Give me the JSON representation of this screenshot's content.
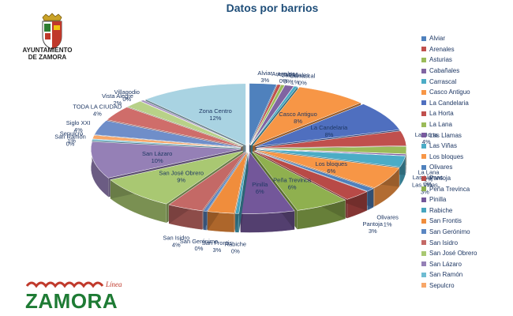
{
  "chart_data": {
    "type": "pie",
    "title": "Datos por barrios",
    "categories": [
      "Alviar",
      "Arenales",
      "Asturias",
      "Cabañales",
      "Carrascal",
      "Casco Antiguo",
      "La Candelaria",
      "La Horta",
      "La Lana",
      "Las Llamas",
      "Las Viñas",
      "Los bloques",
      "Olivares",
      "Pantoja",
      "Peña Trevinca",
      "Pinilla",
      "Rabiche",
      "San Frontis",
      "San Gerónimo",
      "San Isidro",
      "San José Obrero",
      "San Lázaro",
      "San Ramón",
      "Sepulcro",
      "Siglo XXI",
      "TODA LA CIUDAD",
      "Vista Alegre",
      "Villagodio",
      "Zona Centro"
    ],
    "values": [
      3,
      0,
      0,
      1,
      0,
      8,
      8,
      4,
      2,
      0,
      3,
      6,
      1,
      3,
      6,
      6,
      0,
      3,
      0,
      4,
      9,
      10,
      0,
      1,
      4,
      4,
      2,
      0,
      12
    ],
    "value_labels": [
      "3%",
      "0%",
      "0%",
      "1%",
      "0%",
      "8%",
      "8%",
      "4%",
      "2%",
      "0%",
      "3%",
      "6%",
      "1%",
      "3%",
      "6%",
      "6%",
      "0%",
      "3%",
      "0%",
      "4%",
      "9%",
      "10%",
      "0%",
      "1%",
      "4%",
      "4%",
      "2%",
      "0%",
      "12%"
    ],
    "legend_position": "right",
    "legend_items": [
      "Alviar",
      "Arenales",
      "Asturias",
      "Cabañales",
      "Carrascal",
      "Casco Antiguo",
      "La Candelaria",
      "La Horta",
      "La Lana",
      "Las Llamas",
      "Las Viñas",
      "Los bloques",
      "Olivares",
      "Pantoja",
      "Peña Trevinca",
      "Pinilla",
      "Rabiche",
      "San Frontis",
      "San Gerónimo",
      "San Isidro",
      "San José Obrero",
      "San Lázaro",
      "San Ramón",
      "Sepulcro"
    ],
    "colors": [
      "#4f81bd",
      "#c0504d",
      "#9bbb59",
      "#8064a2",
      "#4bacc6",
      "#f79646",
      "#4f6fbf",
      "#c0504d",
      "#9bbb59",
      "#7a5a9f",
      "#4bacc6",
      "#f79646",
      "#4f81bd",
      "#b84a47",
      "#8fb04f",
      "#73579a",
      "#46a5bf",
      "#f08d3c",
      "#5a86c2",
      "#c46966",
      "#a9c872",
      "#9580b6",
      "#6fbcd2",
      "#f7a769",
      "#6f8ec9",
      "#cf6d6a",
      "#b8d188",
      "#a691c0",
      "#a9d3e2"
    ]
  },
  "branding": {
    "top_logo_text_line1": "AYUNTAMIENTO",
    "top_logo_text_line2": "DE ZAMORA",
    "bottom_logo_script": "Línea",
    "bottom_logo_word": "ZAMORA"
  }
}
